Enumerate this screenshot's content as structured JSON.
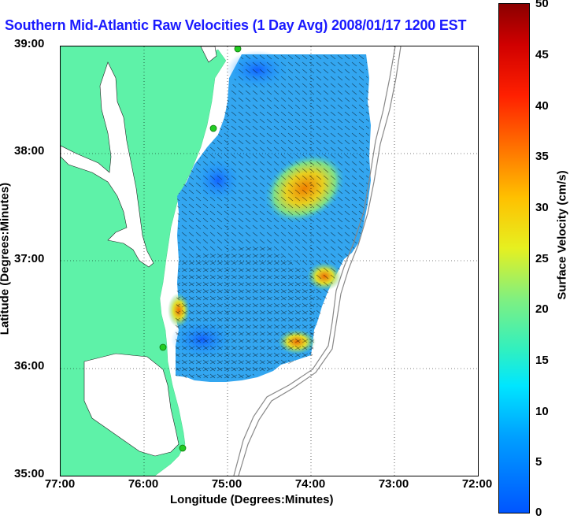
{
  "title": "Southern Mid-Atlantic Raw Velocities (1 Day Avg) 2008/01/17 1200 EST",
  "axes": {
    "x_label": "Longitude (Degrees:Minutes)",
    "y_label": "Latitude (Degrees:Minutes)",
    "x_ticks": [
      "77:00",
      "76:00",
      "75:00",
      "74:00",
      "73:00",
      "72:00"
    ],
    "y_ticks": [
      "39:00",
      "38:00",
      "37:00",
      "36:00",
      "35:00"
    ]
  },
  "colorbar": {
    "label": "Surface Velocity (cm/s)",
    "ticks": [
      "50",
      "45",
      "40",
      "35",
      "30",
      "25",
      "20",
      "15",
      "10",
      "5",
      "0"
    ],
    "min": 0,
    "max": 50
  },
  "colors": {
    "land": "#5ef2a8",
    "water": "#ffffff",
    "title": "#1a1aff",
    "vectors": "#000000",
    "stations": "#22cc22",
    "bathymetry": "#888888"
  },
  "map": {
    "lon_range": [
      -77,
      -72
    ],
    "lat_range": [
      35,
      39
    ],
    "grid": true
  }
}
